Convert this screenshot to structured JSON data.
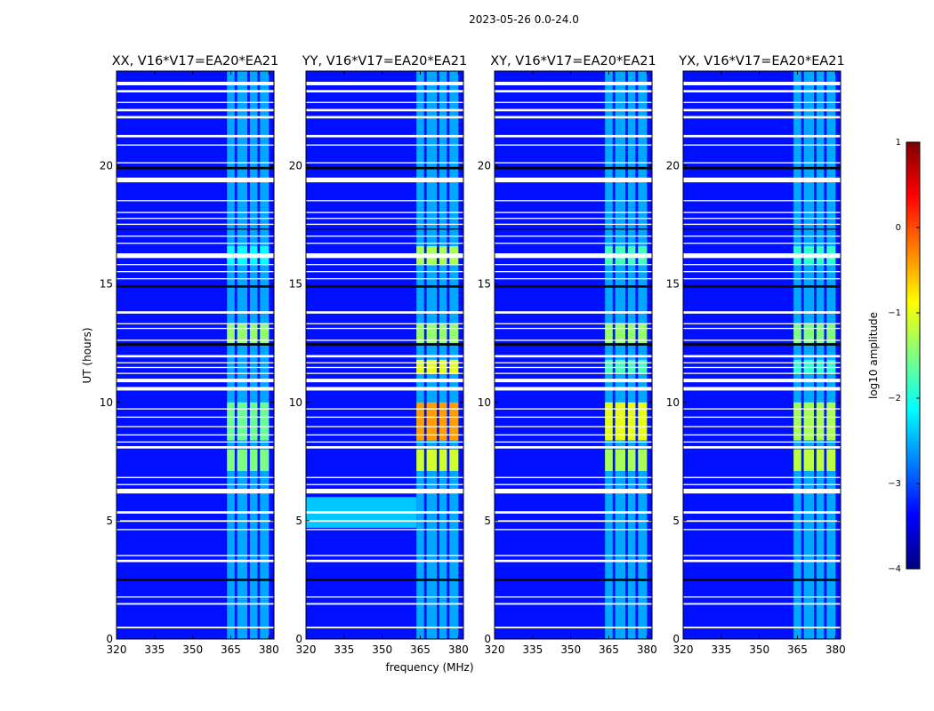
{
  "figure": {
    "title": "2023-05-26 0.0-24.0"
  },
  "colors": {
    "cmap": [
      "#00007f",
      "#0000ff",
      "#007fff",
      "#00ffff",
      "#7fff7f",
      "#ffff00",
      "#ff7f00",
      "#ff0000",
      "#7f0000"
    ],
    "background_level": -3.3,
    "gap": "#ffffff",
    "dark_row": "#000000"
  },
  "chart_data": {
    "type": "heatmap",
    "shared": {
      "xlabel": "frequency (MHz)",
      "ylabel": "UT (hours)",
      "xlim": [
        320,
        382
      ],
      "ylim": [
        0,
        24
      ],
      "xticks": [
        320,
        335,
        350,
        365,
        380
      ],
      "yticks": [
        0,
        5,
        10,
        15,
        20
      ],
      "colorbar": {
        "label": "log10 amplitude",
        "range": [
          -4,
          1
        ],
        "ticks": [
          -4,
          -3,
          -2,
          -1,
          0,
          1
        ]
      }
    },
    "panels": [
      {
        "title": "XX, V16*V17=EA20*EA21",
        "rfi_channels_mhz": [
          [
            363.5,
            366.5
          ],
          [
            367.5,
            371.5
          ],
          [
            372.5,
            375.5
          ],
          [
            376.5,
            380
          ]
        ],
        "levels": [
          {
            "t0": 7.1,
            "t1": 8.0,
            "v": -1.5
          },
          {
            "t0": 8.4,
            "t1": 10.0,
            "v": -1.6
          },
          {
            "t0": 12.5,
            "t1": 13.3,
            "v": -1.4
          },
          {
            "t0": 15.8,
            "t1": 16.6,
            "v": -2.1
          }
        ]
      },
      {
        "title": "YY, V16*V17=EA20*EA21",
        "rfi_channels_mhz": [
          [
            363.5,
            366.5
          ],
          [
            367.5,
            371.5
          ],
          [
            372.5,
            375.5
          ],
          [
            376.5,
            380
          ]
        ],
        "levels": [
          {
            "t0": 7.1,
            "t1": 8.0,
            "v": -1.1
          },
          {
            "t0": 8.4,
            "t1": 10.0,
            "v": -0.4
          },
          {
            "t0": 11.2,
            "t1": 11.8,
            "v": -1.0
          },
          {
            "t0": 12.5,
            "t1": 13.3,
            "v": -1.4
          },
          {
            "t0": 15.8,
            "t1": 16.6,
            "v": -1.3
          }
        ],
        "extra_band": {
          "t0": 4.7,
          "t1": 6.0,
          "v": -2.4
        }
      },
      {
        "title": "XY, V16*V17=EA20*EA21",
        "rfi_channels_mhz": [
          [
            363.5,
            366.5
          ],
          [
            367.5,
            371.5
          ],
          [
            372.5,
            375.5
          ],
          [
            376.5,
            380
          ]
        ],
        "levels": [
          {
            "t0": 7.1,
            "t1": 8.0,
            "v": -1.3
          },
          {
            "t0": 8.4,
            "t1": 10.0,
            "v": -1.0
          },
          {
            "t0": 11.2,
            "t1": 11.8,
            "v": -1.8
          },
          {
            "t0": 12.5,
            "t1": 13.3,
            "v": -1.4
          },
          {
            "t0": 15.8,
            "t1": 16.6,
            "v": -1.8
          }
        ]
      },
      {
        "title": "YX, V16*V17=EA20*EA21",
        "rfi_channels_mhz": [
          [
            363.5,
            366.5
          ],
          [
            367.5,
            371.5
          ],
          [
            372.5,
            375.5
          ],
          [
            376.5,
            380
          ]
        ],
        "levels": [
          {
            "t0": 7.1,
            "t1": 8.0,
            "v": -1.2
          },
          {
            "t0": 8.4,
            "t1": 10.0,
            "v": -1.3
          },
          {
            "t0": 11.2,
            "t1": 11.8,
            "v": -1.9
          },
          {
            "t0": 12.5,
            "t1": 13.3,
            "v": -1.5
          },
          {
            "t0": 15.8,
            "t1": 16.6,
            "v": -1.9
          }
        ]
      }
    ],
    "flagged_gaps_ut": [
      [
        0.45,
        0.52
      ],
      [
        1.45,
        1.52
      ],
      [
        1.75,
        1.8
      ],
      [
        3.25,
        3.35
      ],
      [
        3.5,
        3.55
      ],
      [
        4.6,
        4.65
      ],
      [
        4.95,
        5.02
      ],
      [
        5.3,
        5.4
      ],
      [
        6.15,
        6.35
      ],
      [
        6.5,
        6.55
      ],
      [
        6.8,
        6.85
      ],
      [
        8.05,
        8.15
      ],
      [
        8.3,
        8.35
      ],
      [
        8.6,
        8.65
      ],
      [
        8.95,
        9.0
      ],
      [
        9.35,
        9.4
      ],
      [
        9.7,
        9.75
      ],
      [
        10.5,
        10.65
      ],
      [
        10.85,
        11.0
      ],
      [
        11.2,
        11.25
      ],
      [
        11.45,
        11.5
      ],
      [
        11.65,
        11.7
      ],
      [
        11.9,
        12.0
      ],
      [
        12.6,
        12.65
      ],
      [
        13.1,
        13.15
      ],
      [
        13.3,
        13.35
      ],
      [
        13.75,
        13.85
      ],
      [
        15.2,
        15.25
      ],
      [
        15.5,
        15.55
      ],
      [
        15.8,
        15.85
      ],
      [
        16.1,
        16.3
      ],
      [
        16.7,
        16.75
      ],
      [
        17.0,
        17.05
      ],
      [
        17.5,
        17.55
      ],
      [
        17.75,
        17.8
      ],
      [
        18.0,
        18.05
      ],
      [
        18.5,
        18.55
      ],
      [
        19.3,
        19.5
      ],
      [
        20.1,
        20.15
      ],
      [
        20.85,
        20.9
      ],
      [
        21.2,
        21.3
      ],
      [
        22.0,
        22.1
      ],
      [
        22.3,
        22.4
      ],
      [
        22.65,
        22.7
      ],
      [
        23.1,
        23.2
      ],
      [
        23.4,
        23.55
      ]
    ],
    "flagged_dark_ut": [
      [
        2.45,
        2.55
      ],
      [
        12.4,
        12.5
      ],
      [
        14.85,
        14.95
      ],
      [
        17.3,
        17.35
      ],
      [
        19.85,
        19.95
      ]
    ]
  }
}
